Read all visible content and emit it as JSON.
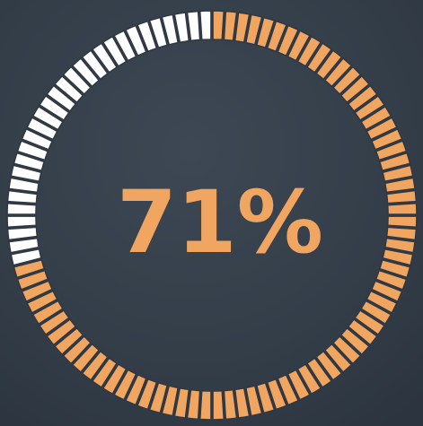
{
  "chart_data": {
    "type": "gauge",
    "values": [
      71
    ],
    "value_labels": [
      "71%"
    ],
    "ylim": [
      0,
      100
    ],
    "color": "#f0a560",
    "track_color": "#ffffff"
  }
}
